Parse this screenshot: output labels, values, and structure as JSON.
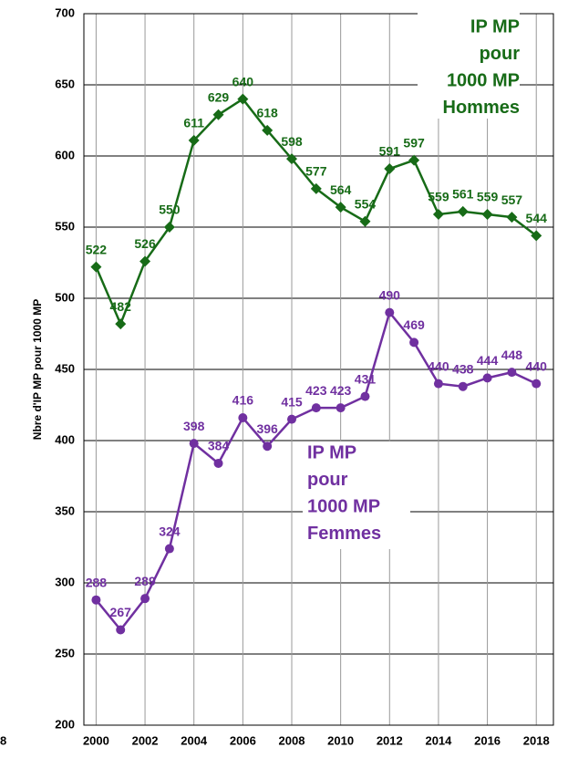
{
  "chart_data": {
    "type": "line",
    "y_label": "Nbre d'IP MP pour 1000 MP",
    "x": [
      2000,
      2001,
      2002,
      2003,
      2004,
      2005,
      2006,
      2007,
      2008,
      2009,
      2010,
      2011,
      2012,
      2013,
      2014,
      2015,
      2016,
      2017,
      2018
    ],
    "series": [
      {
        "color": "#176b17",
        "marker": "diamond",
        "values": [
          522,
          482,
          526,
          550,
          611,
          629,
          640,
          618,
          598,
          577,
          564,
          554,
          591,
          597,
          559,
          561,
          559,
          557,
          544
        ]
      },
      {
        "color": "#7030a0",
        "marker": "circle",
        "values": [
          288,
          267,
          289,
          324,
          398,
          384,
          416,
          396,
          415,
          423,
          423,
          431,
          490,
          469,
          440,
          438,
          444,
          448,
          440
        ]
      }
    ],
    "annotations": [
      {
        "color": "#176b17",
        "lines": [
          "IP MP",
          "pour",
          "1000 MP",
          "Hommes"
        ]
      },
      {
        "color": "#7030a0",
        "lines": [
          "IP MP",
          "pour",
          "1000 MP",
          "Femmes"
        ]
      }
    ],
    "xlim": [
      1999.5,
      2018.7
    ],
    "xticks": [
      2000,
      2002,
      2004,
      2006,
      2008,
      2010,
      2012,
      2014,
      2016,
      2018
    ],
    "ylim": [
      200,
      700
    ],
    "yticks": [
      200,
      250,
      300,
      350,
      400,
      450,
      500,
      550,
      600,
      650,
      700
    ],
    "grid": true,
    "clipped_label": "8"
  }
}
